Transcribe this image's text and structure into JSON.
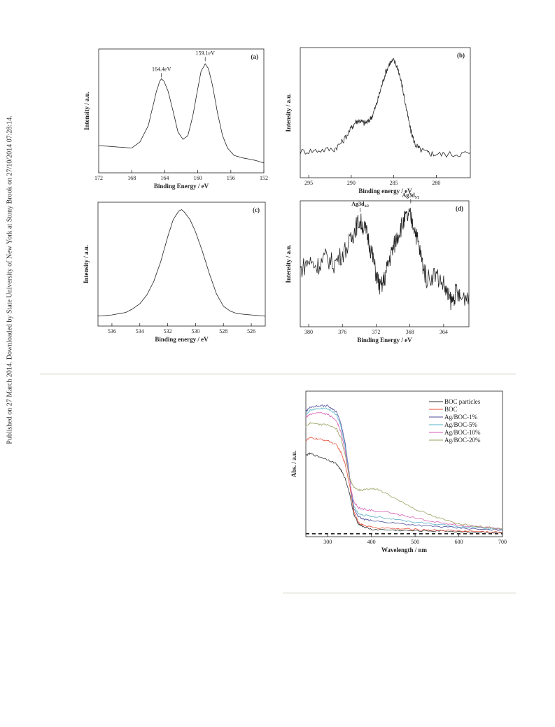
{
  "sidebar_text": "Published on 27 March 2014. Downloaded by State University of New York at Stony Brook on 27/10/2014 07:28:14.",
  "colors": {
    "curve": "#222222",
    "rule": "#c9cab9",
    "BOC particles": "#333333",
    "BOC": "#e8503a",
    "Ag/BOC-1%": "#4a4a9a",
    "Ag/BOC-5%": "#5ab0c8",
    "Ag/BOC-10%": "#d65ab0",
    "Ag/BOC-20%": "#9aa060",
    "baseline": "#222222"
  },
  "chart_data": [
    {
      "id": "a",
      "type": "line",
      "panel_label": "(a)",
      "xlabel": "Binding Energy / eV",
      "ylabel": "Intensity / a.u.",
      "xlim": [
        172,
        152
      ],
      "xticks": [
        172,
        168,
        164,
        160,
        156,
        152
      ],
      "ylim": [
        0,
        1
      ],
      "annotations": [
        {
          "text": "164.4eV",
          "x": 164.4,
          "y": 0.76
        },
        {
          "text": "159.1eV",
          "x": 159.1,
          "y": 0.89
        }
      ],
      "series": [
        {
          "x": [
            172,
            170,
            168,
            167,
            166,
            165.5,
            165,
            164.6,
            164.4,
            164.1,
            163.6,
            163,
            162.4,
            161.8,
            161.2,
            160.6,
            160,
            159.6,
            159.1,
            158.7,
            158.2,
            157.6,
            157,
            156.4,
            155.6,
            154.5,
            153,
            152
          ],
          "y": [
            0.22,
            0.21,
            0.2,
            0.25,
            0.38,
            0.52,
            0.66,
            0.74,
            0.76,
            0.74,
            0.66,
            0.5,
            0.33,
            0.27,
            0.3,
            0.46,
            0.68,
            0.82,
            0.88,
            0.84,
            0.7,
            0.48,
            0.3,
            0.2,
            0.14,
            0.12,
            0.1,
            0.08
          ]
        }
      ]
    },
    {
      "id": "b",
      "type": "line",
      "panel_label": "(b)",
      "xlabel": "Binding energy / eV",
      "ylabel": "Intensity / a.u.",
      "xlim": [
        296,
        276
      ],
      "xticks": [
        295,
        290,
        285,
        280
      ],
      "ylim": [
        0,
        1
      ],
      "series": [
        {
          "x": [
            296,
            294,
            292,
            291,
            290,
            289.5,
            289,
            288.5,
            288,
            287.5,
            287,
            286.5,
            286,
            285.5,
            285,
            284.5,
            284,
            283.5,
            283,
            282.5,
            282,
            281,
            280,
            278,
            276
          ],
          "y": [
            0.2,
            0.21,
            0.22,
            0.28,
            0.38,
            0.43,
            0.44,
            0.42,
            0.43,
            0.48,
            0.57,
            0.69,
            0.8,
            0.88,
            0.9,
            0.84,
            0.7,
            0.52,
            0.36,
            0.26,
            0.22,
            0.19,
            0.18,
            0.18,
            0.19
          ]
        }
      ]
    },
    {
      "id": "c",
      "type": "line",
      "panel_label": "(c)",
      "xlabel": "Binding energy / eV",
      "ylabel": "Intensity / a.u.",
      "xlim": [
        537,
        525
      ],
      "xticks": [
        536,
        534,
        532,
        530,
        528,
        526
      ],
      "ylim": [
        0,
        1
      ],
      "series": [
        {
          "x": [
            537,
            536,
            535,
            534.5,
            534,
            533.5,
            533,
            532.5,
            532,
            531.6,
            531.2,
            531,
            530.8,
            530.4,
            530,
            529.5,
            529,
            528.5,
            528,
            527.5,
            527,
            526,
            525
          ],
          "y": [
            0.08,
            0.09,
            0.11,
            0.14,
            0.18,
            0.25,
            0.36,
            0.52,
            0.72,
            0.86,
            0.93,
            0.94,
            0.92,
            0.86,
            0.76,
            0.6,
            0.42,
            0.26,
            0.16,
            0.12,
            0.1,
            0.09,
            0.08
          ]
        }
      ]
    },
    {
      "id": "d",
      "type": "line",
      "panel_label": "(d)",
      "xlabel": "Binding Energy / eV",
      "ylabel": "Intensity / a.u.",
      "xlim": [
        381,
        361
      ],
      "xticks": [
        380,
        376,
        372,
        368,
        364
      ],
      "ylim": [
        0,
        1
      ],
      "annotations": [
        {
          "text": "Ag3d",
          "sub": "3/2",
          "x": 373.9,
          "y": 0.9
        },
        {
          "text": "Ag3d",
          "sub": "5/2",
          "x": 367.9,
          "y": 0.97
        }
      ],
      "series": [
        {
          "x": [
            381,
            380,
            379,
            378,
            377,
            376,
            375,
            374.5,
            374,
            373.5,
            373,
            372.5,
            372,
            371.5,
            371,
            370.5,
            370,
            369.5,
            369,
            368.5,
            368,
            367.5,
            367,
            366.5,
            366,
            365,
            364,
            363.5,
            363,
            362.5,
            362,
            361
          ],
          "y": [
            0.45,
            0.52,
            0.48,
            0.55,
            0.5,
            0.58,
            0.68,
            0.78,
            0.84,
            0.8,
            0.72,
            0.58,
            0.42,
            0.3,
            0.38,
            0.52,
            0.62,
            0.72,
            0.8,
            0.86,
            0.88,
            0.8,
            0.66,
            0.5,
            0.38,
            0.42,
            0.34,
            0.24,
            0.2,
            0.28,
            0.22,
            0.26
          ]
        }
      ]
    },
    {
      "id": "e",
      "type": "line",
      "xlabel": "Wavelength / nm",
      "ylabel": "Abs. / a.u.",
      "xlim": [
        250,
        700
      ],
      "xticks": [
        300,
        400,
        500,
        600,
        700
      ],
      "ylim": [
        0,
        1
      ],
      "series": [
        {
          "name": "BOC particles",
          "x": [
            250,
            260,
            280,
            300,
            320,
            330,
            340,
            350,
            355,
            360,
            370,
            380,
            400,
            450,
            500,
            550,
            600,
            650,
            700
          ],
          "y": [
            0.56,
            0.57,
            0.55,
            0.53,
            0.5,
            0.46,
            0.4,
            0.3,
            0.22,
            0.15,
            0.09,
            0.07,
            0.05,
            0.045,
            0.04,
            0.04,
            0.035,
            0.03,
            0.025
          ]
        },
        {
          "name": "BOC",
          "x": [
            250,
            260,
            280,
            300,
            320,
            330,
            340,
            350,
            355,
            360,
            370,
            380,
            400,
            450,
            500,
            550,
            600,
            650,
            700
          ],
          "y": [
            0.66,
            0.68,
            0.67,
            0.66,
            0.63,
            0.58,
            0.5,
            0.36,
            0.26,
            0.17,
            0.1,
            0.08,
            0.065,
            0.055,
            0.05,
            0.045,
            0.04,
            0.035,
            0.03
          ]
        },
        {
          "name": "Ag/BOC-1%",
          "x": [
            250,
            260,
            280,
            300,
            320,
            330,
            340,
            350,
            355,
            360,
            370,
            380,
            400,
            450,
            500,
            550,
            600,
            650,
            700
          ],
          "y": [
            0.86,
            0.89,
            0.9,
            0.9,
            0.86,
            0.78,
            0.64,
            0.42,
            0.28,
            0.19,
            0.14,
            0.12,
            0.11,
            0.095,
            0.08,
            0.07,
            0.06,
            0.05,
            0.045
          ]
        },
        {
          "name": "Ag/BOC-5%",
          "x": [
            250,
            260,
            280,
            300,
            320,
            330,
            340,
            350,
            355,
            360,
            370,
            380,
            400,
            450,
            500,
            550,
            600,
            650,
            700
          ],
          "y": [
            0.84,
            0.87,
            0.88,
            0.88,
            0.84,
            0.76,
            0.62,
            0.41,
            0.29,
            0.21,
            0.16,
            0.15,
            0.14,
            0.12,
            0.1,
            0.085,
            0.07,
            0.06,
            0.05
          ]
        },
        {
          "name": "Ag/BOC-10%",
          "x": [
            250,
            260,
            280,
            300,
            320,
            330,
            340,
            350,
            355,
            360,
            370,
            380,
            400,
            450,
            500,
            550,
            600,
            650,
            700
          ],
          "y": [
            0.82,
            0.84,
            0.85,
            0.84,
            0.8,
            0.72,
            0.59,
            0.4,
            0.3,
            0.24,
            0.2,
            0.19,
            0.18,
            0.16,
            0.13,
            0.1,
            0.08,
            0.065,
            0.055
          ]
        },
        {
          "name": "Ag/BOC-20%",
          "x": [
            250,
            260,
            280,
            300,
            320,
            330,
            340,
            350,
            360,
            370,
            380,
            400,
            420,
            450,
            500,
            550,
            600,
            650,
            700
          ],
          "y": [
            0.76,
            0.78,
            0.77,
            0.77,
            0.74,
            0.68,
            0.56,
            0.4,
            0.34,
            0.32,
            0.32,
            0.33,
            0.32,
            0.27,
            0.19,
            0.13,
            0.09,
            0.07,
            0.055
          ]
        }
      ],
      "baseline_y": 0.02,
      "legend_position": "top-right"
    }
  ]
}
